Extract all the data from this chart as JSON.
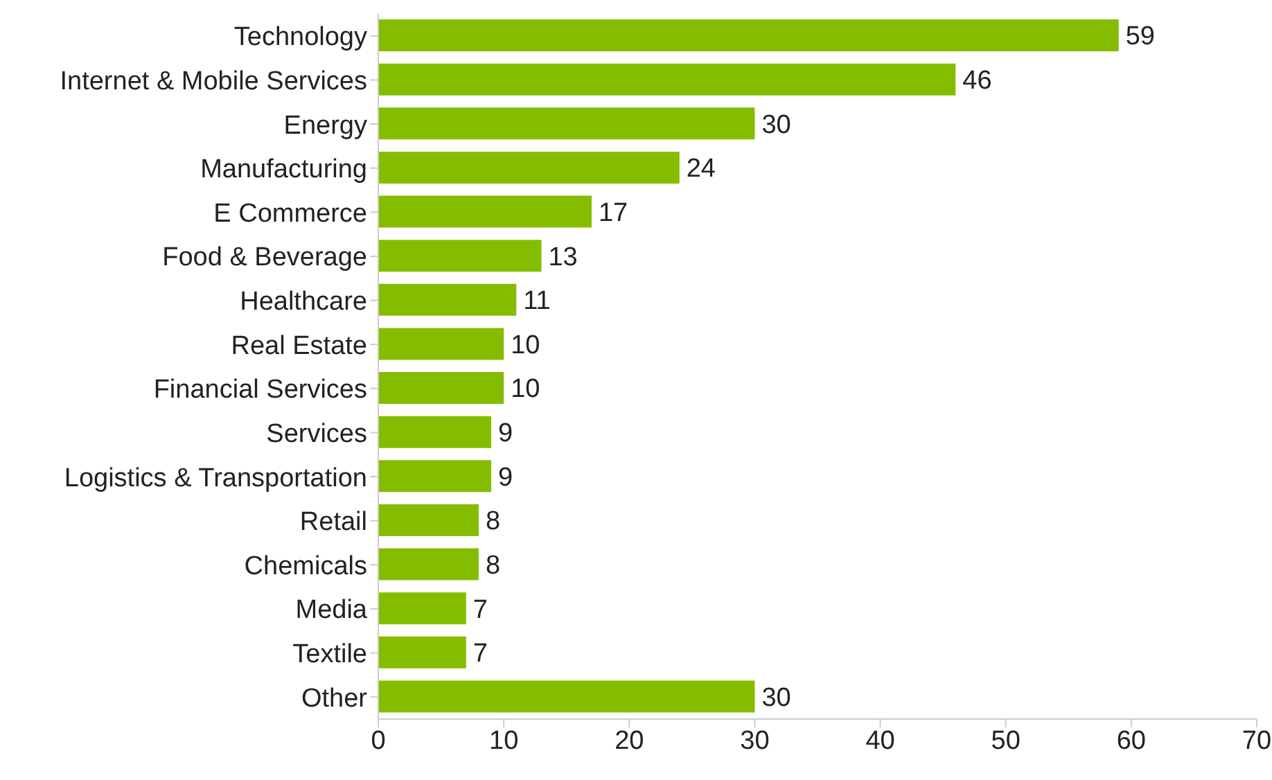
{
  "chart_data": {
    "type": "bar",
    "orientation": "horizontal",
    "categories": [
      "Technology",
      "Internet & Mobile Services",
      "Energy",
      "Manufacturing",
      "E Commerce",
      "Food & Beverage",
      "Healthcare",
      "Real Estate",
      "Financial Services",
      "Services",
      "Logistics & Transportation",
      "Retail",
      "Chemicals",
      "Media",
      "Textile",
      "Other"
    ],
    "values": [
      59,
      46,
      30,
      24,
      17,
      13,
      11,
      10,
      10,
      9,
      9,
      8,
      8,
      7,
      7,
      30
    ],
    "color": "#84bd00",
    "xlim": [
      0,
      70
    ],
    "xticks": [
      0,
      10,
      20,
      30,
      40,
      50,
      60,
      70
    ],
    "grid": false,
    "data_labels": true
  }
}
